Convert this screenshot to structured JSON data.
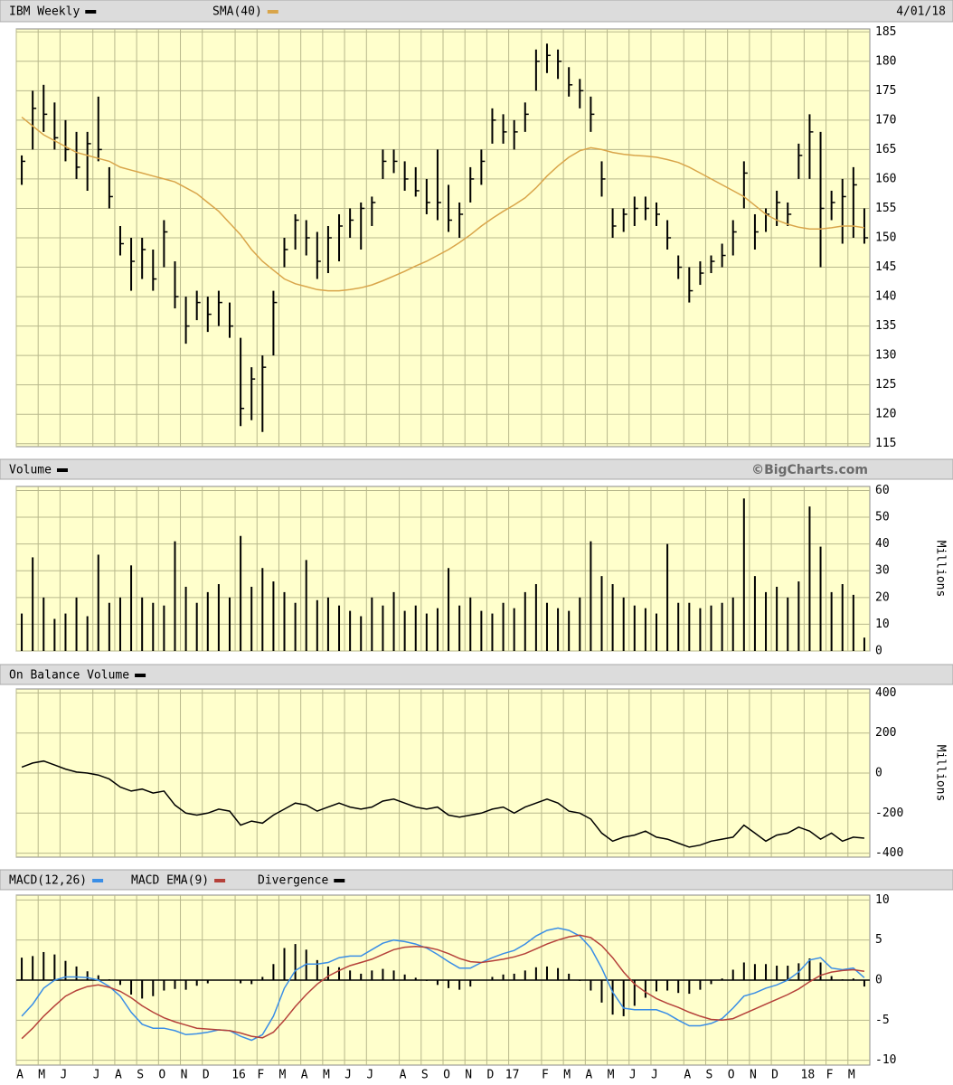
{
  "chart_data": [
    {
      "type": "hlc",
      "date": "4/01/18",
      "series": [
        {
          "name": "IBM Weekly",
          "color": "#000000",
          "high": [
            164,
            175,
            176,
            173,
            170,
            168,
            168,
            174,
            162,
            152,
            150,
            150,
            148,
            153,
            146,
            140,
            141,
            140,
            141,
            139,
            133,
            128,
            130,
            141,
            150,
            154,
            153,
            151,
            152,
            154,
            155,
            156,
            157,
            165,
            165,
            163,
            162,
            160,
            165,
            159,
            156,
            162,
            165,
            172,
            171,
            170,
            173,
            182,
            183,
            182,
            179,
            177,
            174,
            163,
            155,
            155,
            157,
            157,
            156,
            153,
            147,
            145,
            146,
            147,
            149,
            153,
            163,
            154,
            155,
            158,
            156,
            166,
            171,
            168,
            158,
            160,
            162,
            155
          ],
          "low": [
            159,
            165,
            168,
            165,
            163,
            160,
            158,
            163,
            155,
            147,
            141,
            143,
            141,
            145,
            138,
            132,
            136,
            134,
            135,
            133,
            118,
            119,
            117,
            130,
            145,
            148,
            147,
            143,
            144,
            146,
            150,
            148,
            152,
            160,
            161,
            158,
            157,
            154,
            153,
            151,
            150,
            156,
            159,
            166,
            166,
            165,
            168,
            175,
            178,
            177,
            174,
            172,
            168,
            157,
            150,
            151,
            152,
            153,
            152,
            148,
            143,
            139,
            142,
            144,
            145,
            147,
            155,
            148,
            151,
            152,
            152,
            160,
            160,
            145,
            153,
            149,
            150,
            149
          ],
          "close": [
            163,
            172,
            171,
            167,
            165,
            162,
            166,
            165,
            157,
            149,
            146,
            148,
            143,
            151,
            140,
            135,
            139,
            137,
            139,
            135,
            121,
            126,
            128,
            139,
            148,
            153,
            150,
            146,
            150,
            152,
            153,
            155,
            156,
            163,
            163,
            160,
            158,
            156,
            156,
            153,
            154,
            160,
            163,
            170,
            168,
            168,
            171,
            180,
            181,
            180,
            176,
            175,
            171,
            160,
            152,
            154,
            155,
            155,
            154,
            150,
            145,
            141,
            144,
            146,
            147,
            151,
            161,
            151,
            154,
            156,
            154,
            164,
            168,
            155,
            156,
            157,
            159,
            150
          ]
        },
        {
          "name": "SMA(40)",
          "color": "#d9a54a",
          "values": [
            170.5,
            169,
            167.5,
            166.5,
            165.5,
            164.5,
            164,
            163.5,
            163,
            162,
            161.5,
            161,
            160.5,
            160,
            159.5,
            158.5,
            157.5,
            156,
            154.5,
            152.5,
            150.5,
            148,
            146,
            144.5,
            143,
            142.2,
            141.7,
            141.2,
            141,
            141,
            141.2,
            141.5,
            142,
            142.7,
            143.5,
            144.3,
            145.2,
            146,
            147,
            148,
            149.2,
            150.5,
            152,
            153.3,
            154.5,
            155.6,
            156.8,
            158.5,
            160.5,
            162.2,
            163.7,
            164.8,
            165.3,
            165,
            164.5,
            164.2,
            164,
            163.9,
            163.7,
            163.3,
            162.8,
            162,
            161,
            160,
            159,
            158,
            157,
            155.5,
            154,
            153,
            152.3,
            151.8,
            151.5,
            151.5,
            151.7,
            152,
            152,
            151.7
          ]
        }
      ],
      "ylim": [
        114.5,
        185.5
      ],
      "yticks": [
        115,
        120,
        125,
        130,
        135,
        140,
        145,
        150,
        155,
        160,
        165,
        170,
        175,
        180,
        185
      ],
      "grid": true
    },
    {
      "type": "bar",
      "source": "©BigCharts.com",
      "axis_label": "Millions",
      "series": [
        {
          "name": "Volume",
          "color": "#000000",
          "values": [
            14,
            35,
            20,
            12,
            14,
            20,
            13,
            36,
            18,
            20,
            32,
            20,
            18,
            17,
            41,
            24,
            18,
            22,
            25,
            20,
            43,
            24,
            31,
            26,
            22,
            18,
            34,
            19,
            20,
            17,
            15,
            13,
            20,
            17,
            22,
            15,
            17,
            14,
            16,
            31,
            17,
            20,
            15,
            14,
            18,
            16,
            22,
            25,
            18,
            16,
            15,
            20,
            41,
            28,
            25,
            20,
            17,
            16,
            14,
            40,
            18,
            18,
            16,
            17,
            18,
            20,
            57,
            28,
            22,
            24,
            20,
            26,
            54,
            39,
            22,
            25,
            21,
            5
          ]
        }
      ],
      "ylim": [
        0,
        61.5
      ],
      "yticks": [
        0,
        10,
        20,
        30,
        40,
        50,
        60
      ],
      "grid": true
    },
    {
      "type": "line",
      "axis_label": "Millions",
      "series": [
        {
          "name": "On Balance Volume",
          "color": "#000000",
          "values": [
            30,
            50,
            60,
            40,
            20,
            5,
            0,
            -10,
            -30,
            -70,
            -90,
            -80,
            -100,
            -90,
            -160,
            -200,
            -210,
            -200,
            -180,
            -190,
            -260,
            -240,
            -250,
            -210,
            -180,
            -150,
            -160,
            -190,
            -170,
            -150,
            -170,
            -180,
            -170,
            -140,
            -130,
            -150,
            -170,
            -180,
            -170,
            -210,
            -220,
            -210,
            -200,
            -180,
            -170,
            -200,
            -170,
            -150,
            -130,
            -150,
            -190,
            -200,
            -230,
            -300,
            -340,
            -320,
            -310,
            -290,
            -320,
            -330,
            -350,
            -370,
            -360,
            -340,
            -330,
            -320,
            -260,
            -300,
            -340,
            -310,
            -300,
            -270,
            -290,
            -330,
            -300,
            -340,
            -320,
            -325
          ]
        }
      ],
      "ylim": [
        -420,
        420
      ],
      "yticks": [
        400,
        200,
        0,
        -200,
        -400
      ],
      "grid": true
    },
    {
      "type": "macd",
      "categories": [
        "A",
        null,
        "M",
        null,
        "J",
        null,
        null,
        "J",
        null,
        "A",
        null,
        "S",
        null,
        "O",
        null,
        "N",
        null,
        "D",
        null,
        null,
        "16",
        null,
        "F",
        null,
        "M",
        null,
        "A",
        null,
        "M",
        null,
        "J",
        null,
        "J",
        null,
        null,
        "A",
        null,
        "S",
        null,
        "O",
        null,
        "N",
        null,
        "D",
        null,
        "17",
        null,
        null,
        "F",
        null,
        "M",
        null,
        "A",
        null,
        "M",
        null,
        "J",
        null,
        "J",
        null,
        null,
        "A",
        null,
        "S",
        null,
        "O",
        null,
        "N",
        null,
        "D",
        null,
        null,
        "18",
        null,
        "F",
        null,
        "M",
        null
      ],
      "series": [
        {
          "name": "MACD(12,26)",
          "type": "line",
          "color": "#3a8ee6",
          "values": [
            -4.5,
            -3,
            -1,
            0,
            0.4,
            0.4,
            0.3,
            0,
            -0.8,
            -2,
            -4,
            -5.5,
            -6,
            -6,
            -6.3,
            -6.8,
            -6.7,
            -6.5,
            -6.2,
            -6.3,
            -7,
            -7.5,
            -6.8,
            -4.5,
            -1,
            1.2,
            2,
            2,
            2.2,
            2.8,
            3,
            3,
            3.8,
            4.6,
            5,
            4.8,
            4.5,
            4,
            3.2,
            2.3,
            1.5,
            1.5,
            2.2,
            2.8,
            3.3,
            3.7,
            4.5,
            5.5,
            6.2,
            6.5,
            6.2,
            5.5,
            4,
            1.5,
            -1.5,
            -3.5,
            -3.7,
            -3.7,
            -3.7,
            -4.2,
            -5,
            -5.7,
            -5.7,
            -5.4,
            -4.8,
            -3.5,
            -2,
            -1.6,
            -1,
            -0.6,
            0,
            1,
            2.5,
            2.8,
            1.5,
            1.3,
            1.5,
            0.3
          ]
        },
        {
          "name": "MACD EMA(9)",
          "type": "line",
          "color": "#b5413a",
          "values": [
            -7.3,
            -6,
            -4.5,
            -3.2,
            -2,
            -1.3,
            -0.8,
            -0.6,
            -0.9,
            -1.4,
            -2.2,
            -3.2,
            -4,
            -4.7,
            -5.2,
            -5.6,
            -6,
            -6.1,
            -6.2,
            -6.3,
            -6.6,
            -7,
            -7.2,
            -6.5,
            -5,
            -3.3,
            -1.8,
            -0.5,
            0.5,
            1.2,
            1.8,
            2.2,
            2.6,
            3.2,
            3.8,
            4.1,
            4.2,
            4.1,
            3.8,
            3.3,
            2.7,
            2.3,
            2.2,
            2.4,
            2.6,
            2.9,
            3.3,
            3.9,
            4.5,
            5,
            5.4,
            5.6,
            5.3,
            4.3,
            2.8,
            1,
            -0.5,
            -1.5,
            -2.3,
            -2.9,
            -3.4,
            -4,
            -4.5,
            -4.9,
            -5,
            -4.8,
            -4.2,
            -3.6,
            -3,
            -2.4,
            -1.8,
            -1.1,
            -0.2,
            0.6,
            1,
            1.2,
            1.3,
            1.1
          ]
        },
        {
          "name": "Divergence",
          "type": "bar",
          "color": "#000000",
          "values": [
            2.8,
            3,
            3.5,
            3.2,
            2.4,
            1.7,
            1.1,
            0.6,
            0.1,
            -0.6,
            -1.8,
            -2.3,
            -2,
            -1.3,
            -1.1,
            -1.2,
            -0.7,
            -0.4,
            0,
            0,
            -0.4,
            -0.5,
            0.4,
            2,
            4,
            4.5,
            3.8,
            2.5,
            1.7,
            1.6,
            1.2,
            0.8,
            1.2,
            1.4,
            1.2,
            0.7,
            0.3,
            -0.1,
            -0.6,
            -1,
            -1.2,
            -0.8,
            0,
            0.4,
            0.7,
            0.8,
            1.2,
            1.6,
            1.7,
            1.5,
            0.8,
            -0.1,
            -1.3,
            -2.8,
            -4.3,
            -4.5,
            -3.2,
            -2.2,
            -1.4,
            -1.3,
            -1.6,
            -1.7,
            -1.2,
            -0.5,
            0.2,
            1.3,
            2.2,
            2,
            2,
            1.8,
            1.8,
            2.1,
            2.7,
            2.2,
            0.5,
            0.1,
            0.2,
            -0.8
          ]
        }
      ],
      "ylim": [
        -10.6,
        10.6
      ],
      "yticks": [
        10,
        5,
        0,
        -5,
        -10
      ],
      "grid": true
    }
  ]
}
